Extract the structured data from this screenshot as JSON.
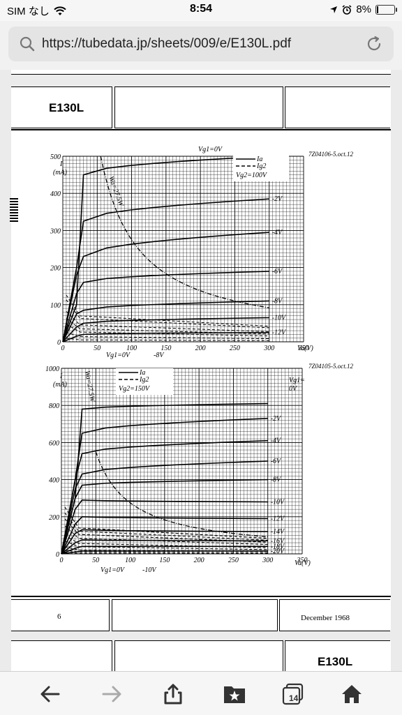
{
  "status": {
    "carrier": "SIM なし",
    "time": "8:54",
    "battery": "8%",
    "battery_level": 0.08
  },
  "browser": {
    "url": "https://tubedata.jp/sheets/009/e/E130L.pdf",
    "tabs_count": "14"
  },
  "page1": {
    "tube": "E130L",
    "footer_page": "6",
    "footer_date": "December 1968",
    "chart1": {
      "code": "7Z04106-5.oct.12",
      "ylabel_I": "I",
      "ylabel_unit": "(mA)",
      "xlabel": "Va(V)",
      "yticks": [
        "500",
        "400",
        "300",
        "200",
        "100",
        "0"
      ],
      "xticks": [
        "0",
        "50",
        "100",
        "150",
        "200",
        "250",
        "300",
        "350"
      ],
      "legend_ia": "Ia",
      "legend_ig2": "Ig2",
      "legend_vg2": "Vg2=100V",
      "label_top": "Vg1=0V",
      "label_wa": "Wa=27.5W",
      "bottom_labels": [
        "Vg1=0V",
        "-8V"
      ],
      "curve_labels": [
        "-2V",
        "-4V",
        "-6V",
        "-8V",
        "-10V",
        "-12V"
      ]
    },
    "chart2": {
      "code": "7Z04105-5.oct.12",
      "ylabel_I": "I",
      "ylabel_unit": "(mA)",
      "xlabel": "Va(V)",
      "yticks": [
        "1000",
        "800",
        "600",
        "400",
        "200",
        "0"
      ],
      "xticks": [
        "0",
        "50",
        "100",
        "150",
        "200",
        "250",
        "300",
        "350"
      ],
      "legend_ia": "Ia",
      "legend_ig2": "Ig2",
      "legend_vg2": "Vg2=150V",
      "label_top": "Vg1=",
      "label_top2": "0V",
      "label_wa": "Wa=27.5W",
      "bottom_labels": [
        "Vg1=0V",
        "-10V"
      ],
      "curve_labels": [
        "-2V",
        "-4V",
        "-6V",
        "-8V",
        "-10V",
        "-12V",
        "-14V",
        "-16V",
        "-18V",
        "-20V"
      ]
    }
  },
  "page2": {
    "tube": "E130L"
  },
  "chart_data": [
    {
      "type": "line",
      "title": "",
      "xlabel": "Va(V)",
      "ylabel": "I (mA)",
      "xlim": [
        0,
        350
      ],
      "ylim": [
        0,
        500
      ],
      "series": [
        {
          "name": "Vg1=0V",
          "x": [
            20,
            30,
            300
          ],
          "y": [
            100,
            450,
            500
          ]
        },
        {
          "name": "-2V",
          "x": [
            20,
            30,
            300
          ],
          "y": [
            200,
            325,
            385
          ]
        },
        {
          "name": "-4V",
          "x": [
            20,
            30,
            300
          ],
          "y": [
            180,
            230,
            295
          ]
        },
        {
          "name": "-6V",
          "x": [
            20,
            30,
            300
          ],
          "y": [
            130,
            160,
            190
          ]
        },
        {
          "name": "-8V",
          "x": [
            20,
            30,
            300
          ],
          "y": [
            75,
            85,
            110
          ]
        },
        {
          "name": "-10V",
          "x": [
            20,
            30,
            300
          ],
          "y": [
            40,
            50,
            65
          ]
        },
        {
          "name": "-12V",
          "x": [
            20,
            30,
            300
          ],
          "y": [
            15,
            20,
            25
          ]
        }
      ]
    },
    {
      "type": "line",
      "title": "",
      "xlabel": "Va(V)",
      "ylabel": "I (mA)",
      "xlim": [
        0,
        350
      ],
      "ylim": [
        0,
        1000
      ],
      "series": [
        {
          "name": "Vg1=0V",
          "x": [
            20,
            30,
            300
          ],
          "y": [
            300,
            780,
            810
          ]
        },
        {
          "name": "-2V",
          "x": [
            20,
            30,
            300
          ],
          "y": [
            400,
            650,
            730
          ]
        },
        {
          "name": "-4V",
          "x": [
            20,
            30,
            300
          ],
          "y": [
            400,
            540,
            610
          ]
        },
        {
          "name": "-6V",
          "x": [
            20,
            30,
            300
          ],
          "y": [
            350,
            430,
            500
          ]
        },
        {
          "name": "-8V",
          "x": [
            20,
            30,
            300
          ],
          "y": [
            300,
            370,
            400
          ]
        },
        {
          "name": "-10V",
          "x": [
            20,
            30,
            300
          ],
          "y": [
            240,
            290,
            280
          ]
        },
        {
          "name": "-12V",
          "x": [
            20,
            30,
            300
          ],
          "y": [
            160,
            200,
            190
          ]
        },
        {
          "name": "-14V",
          "x": [
            20,
            30,
            300
          ],
          "y": [
            110,
            130,
            120
          ]
        },
        {
          "name": "-16V",
          "x": [
            20,
            30,
            300
          ],
          "y": [
            60,
            75,
            70
          ]
        },
        {
          "name": "-18V",
          "x": [
            20,
            30,
            300
          ],
          "y": [
            30,
            40,
            40
          ]
        },
        {
          "name": "-20V",
          "x": [
            20,
            30,
            300
          ],
          "y": [
            10,
            15,
            15
          ]
        }
      ]
    }
  ]
}
